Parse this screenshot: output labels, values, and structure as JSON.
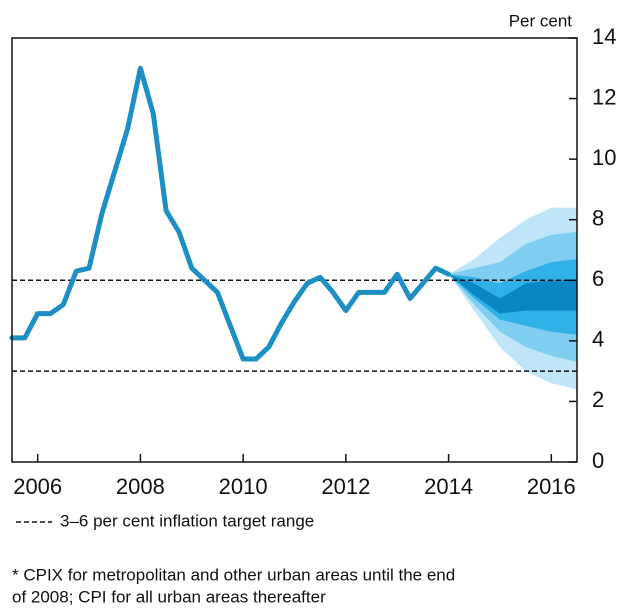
{
  "chart_data": {
    "type": "fan-line",
    "y_axis_label": "Per cent",
    "x": [
      2005.5,
      2005.75,
      2006,
      2006.25,
      2006.5,
      2006.75,
      2007,
      2007.25,
      2007.5,
      2007.75,
      2008,
      2008.25,
      2008.5,
      2008.75,
      2009,
      2009.25,
      2009.5,
      2009.75,
      2010,
      2010.25,
      2010.5,
      2010.75,
      2011,
      2011.25,
      2011.5,
      2011.75,
      2012,
      2012.25,
      2012.5,
      2012.75,
      2013,
      2013.25,
      2013.5,
      2013.75,
      2014
    ],
    "series": [
      {
        "color": "#1d8fc2",
        "values": [
          4.1,
          4.1,
          4.9,
          4.9,
          5.2,
          6.3,
          6.4,
          8.2,
          9.6,
          11.0,
          13.0,
          11.5,
          8.3,
          7.6,
          6.4,
          6.0,
          5.6,
          4.5,
          3.4,
          3.4,
          3.8,
          4.6,
          5.3,
          5.9,
          6.1,
          5.6,
          5.0,
          5.6,
          5.6,
          5.6,
          6.2,
          5.4,
          5.9,
          6.4,
          6.2
        ]
      }
    ],
    "fan_x": [
      2014,
      2014.5,
      2015,
      2015.5,
      2016,
      2016.5
    ],
    "fan_bands": [
      {
        "color": "#bfe6f8",
        "upper": [
          6.2,
          6.7,
          7.4,
          8.0,
          8.4,
          8.4
        ],
        "lower": [
          6.2,
          5.0,
          3.8,
          3.0,
          2.6,
          2.4
        ]
      },
      {
        "color": "#7fcdf0",
        "upper": [
          6.2,
          6.4,
          6.6,
          7.2,
          7.5,
          7.6
        ],
        "lower": [
          6.2,
          5.2,
          4.3,
          3.8,
          3.5,
          3.3
        ]
      },
      {
        "color": "#2fb0e6",
        "upper": [
          6.2,
          6.1,
          5.9,
          6.3,
          6.6,
          6.7
        ],
        "lower": [
          6.2,
          5.4,
          4.7,
          4.5,
          4.3,
          4.2
        ]
      },
      {
        "color": "#0b86c4",
        "upper": [
          6.2,
          5.9,
          5.4,
          5.9,
          6.0,
          6.0
        ],
        "lower": [
          6.2,
          5.5,
          4.9,
          5.0,
          5.0,
          5.0
        ]
      }
    ],
    "reference_lines": [
      3,
      6
    ],
    "xlim": [
      2005.5,
      2016.5
    ],
    "xticks": [
      2006,
      2008,
      2010,
      2012,
      2014,
      2016
    ],
    "ylim": [
      0,
      14
    ],
    "yticks": [
      0,
      2,
      4,
      6,
      8,
      10,
      12,
      14
    ],
    "legend_text": "3–6 per cent inflation target range",
    "footnote": [
      "* CPIX for metropolitan and other urban areas until the end",
      "of 2008; CPI for all urban areas thereafter"
    ]
  }
}
